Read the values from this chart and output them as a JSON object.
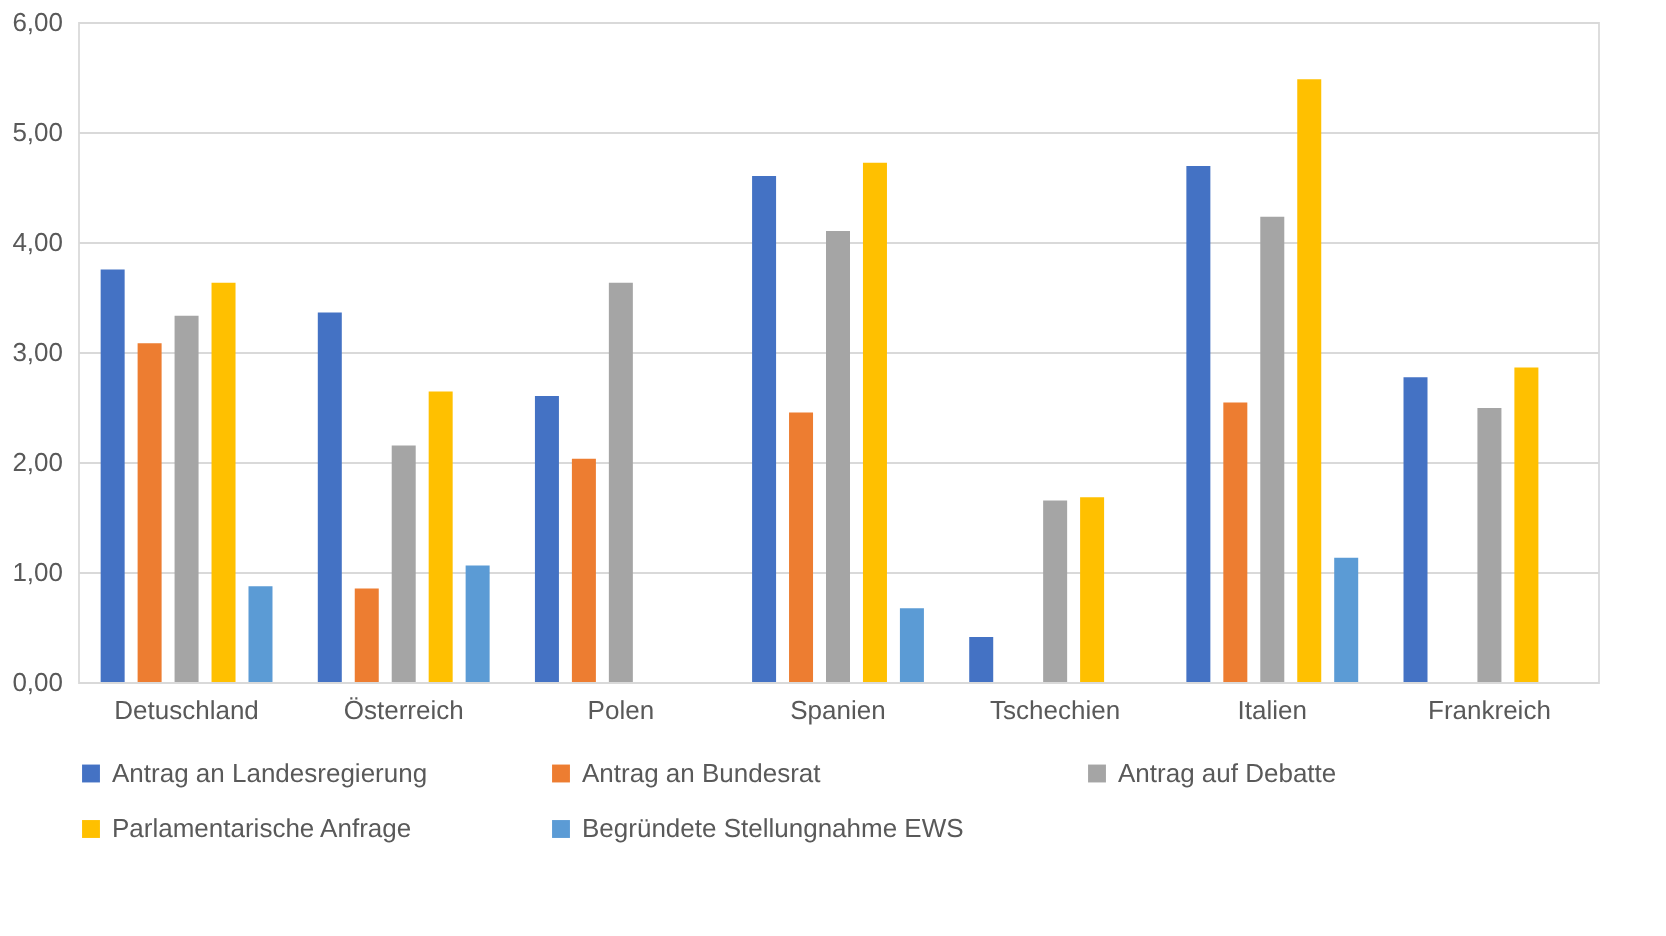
{
  "chart_data": {
    "type": "bar",
    "categories": [
      "Detuschland",
      "Österreich",
      "Polen",
      "Spanien",
      "Tschechien",
      "Italien",
      "Frankreich"
    ],
    "series": [
      {
        "name": "Antrag an Landesregierung",
        "color": "#4472c4",
        "values": [
          3.75,
          3.36,
          2.6,
          4.6,
          0.41,
          4.69,
          2.77
        ]
      },
      {
        "name": "Antrag an Bundesrat",
        "color": "#ed7d31",
        "values": [
          3.08,
          0.85,
          2.03,
          2.45,
          null,
          2.54,
          null
        ]
      },
      {
        "name": "Antrag auf Debatte",
        "color": "#a5a5a5",
        "values": [
          3.33,
          2.15,
          3.63,
          4.1,
          1.65,
          4.23,
          2.49
        ]
      },
      {
        "name": "Parlamentarische Anfrage",
        "color": "#ffc000",
        "values": [
          3.63,
          2.64,
          null,
          4.72,
          1.68,
          5.48,
          2.86
        ]
      },
      {
        "name": "Begründete Stellungnahme EWS",
        "color": "#5b9bd5",
        "values": [
          0.87,
          1.06,
          null,
          0.67,
          null,
          1.13,
          null
        ]
      }
    ],
    "ylim": [
      0,
      6
    ],
    "yticks": [
      {
        "value": 0,
        "label": "0,00"
      },
      {
        "value": 1,
        "label": "1,00"
      },
      {
        "value": 2,
        "label": "2,00"
      },
      {
        "value": 3,
        "label": "3,00"
      },
      {
        "value": 4,
        "label": "4,00"
      },
      {
        "value": 5,
        "label": "5,00"
      },
      {
        "value": 6,
        "label": "6,00"
      }
    ],
    "grid": "y",
    "legend": "bottom"
  }
}
